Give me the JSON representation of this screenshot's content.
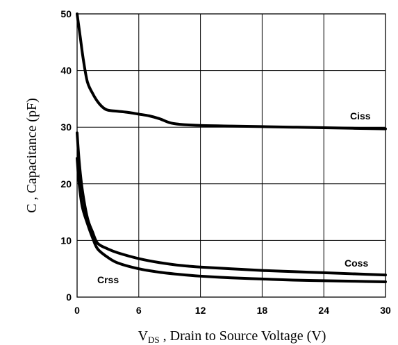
{
  "chart_data": {
    "type": "line",
    "ylabel": "C , Capacitance (pF)",
    "xlabel": {
      "main": "V",
      "sub": "DS",
      "rest": " , Drain to Source Voltage (V)"
    },
    "xlim": [
      0,
      30
    ],
    "ylim": [
      0,
      50
    ],
    "x_ticks": [
      "0",
      "6",
      "12",
      "18",
      "24",
      "30"
    ],
    "y_ticks": [
      "0",
      "10",
      "20",
      "30",
      "40",
      "50"
    ],
    "grid": true,
    "series": [
      {
        "name": "Ciss",
        "x": [
          0,
          0.3,
          0.6,
          1,
          1.5,
          2,
          2.5,
          3,
          4,
          5,
          6,
          7,
          8,
          9,
          10,
          12,
          15,
          18,
          21,
          24,
          27,
          30
        ],
        "y": [
          50,
          46,
          42,
          38,
          36,
          34.5,
          33.5,
          33,
          32.8,
          32.6,
          32.3,
          32,
          31.5,
          30.8,
          30.5,
          30.3,
          30.2,
          30.1,
          30,
          29.9,
          29.8,
          29.7
        ]
      },
      {
        "name": "Coss",
        "x": [
          0,
          0.2,
          0.5,
          1,
          1.5,
          2,
          3,
          4,
          6,
          8,
          10,
          12,
          15,
          18,
          21,
          24,
          27,
          30
        ],
        "y": [
          29,
          24,
          19,
          14,
          11.5,
          9.5,
          8.5,
          7.8,
          6.8,
          6.1,
          5.6,
          5.3,
          5,
          4.7,
          4.5,
          4.3,
          4.1,
          3.9
        ]
      },
      {
        "name": "Crss",
        "x": [
          0,
          0.2,
          0.5,
          1,
          1.5,
          2,
          3,
          4,
          6,
          8,
          10,
          12,
          15,
          18,
          21,
          24,
          27,
          30
        ],
        "y": [
          24.5,
          20,
          16,
          13,
          10.5,
          8.5,
          7,
          6,
          5,
          4.4,
          4,
          3.7,
          3.4,
          3.2,
          3,
          2.9,
          2.8,
          2.7
        ]
      }
    ]
  }
}
